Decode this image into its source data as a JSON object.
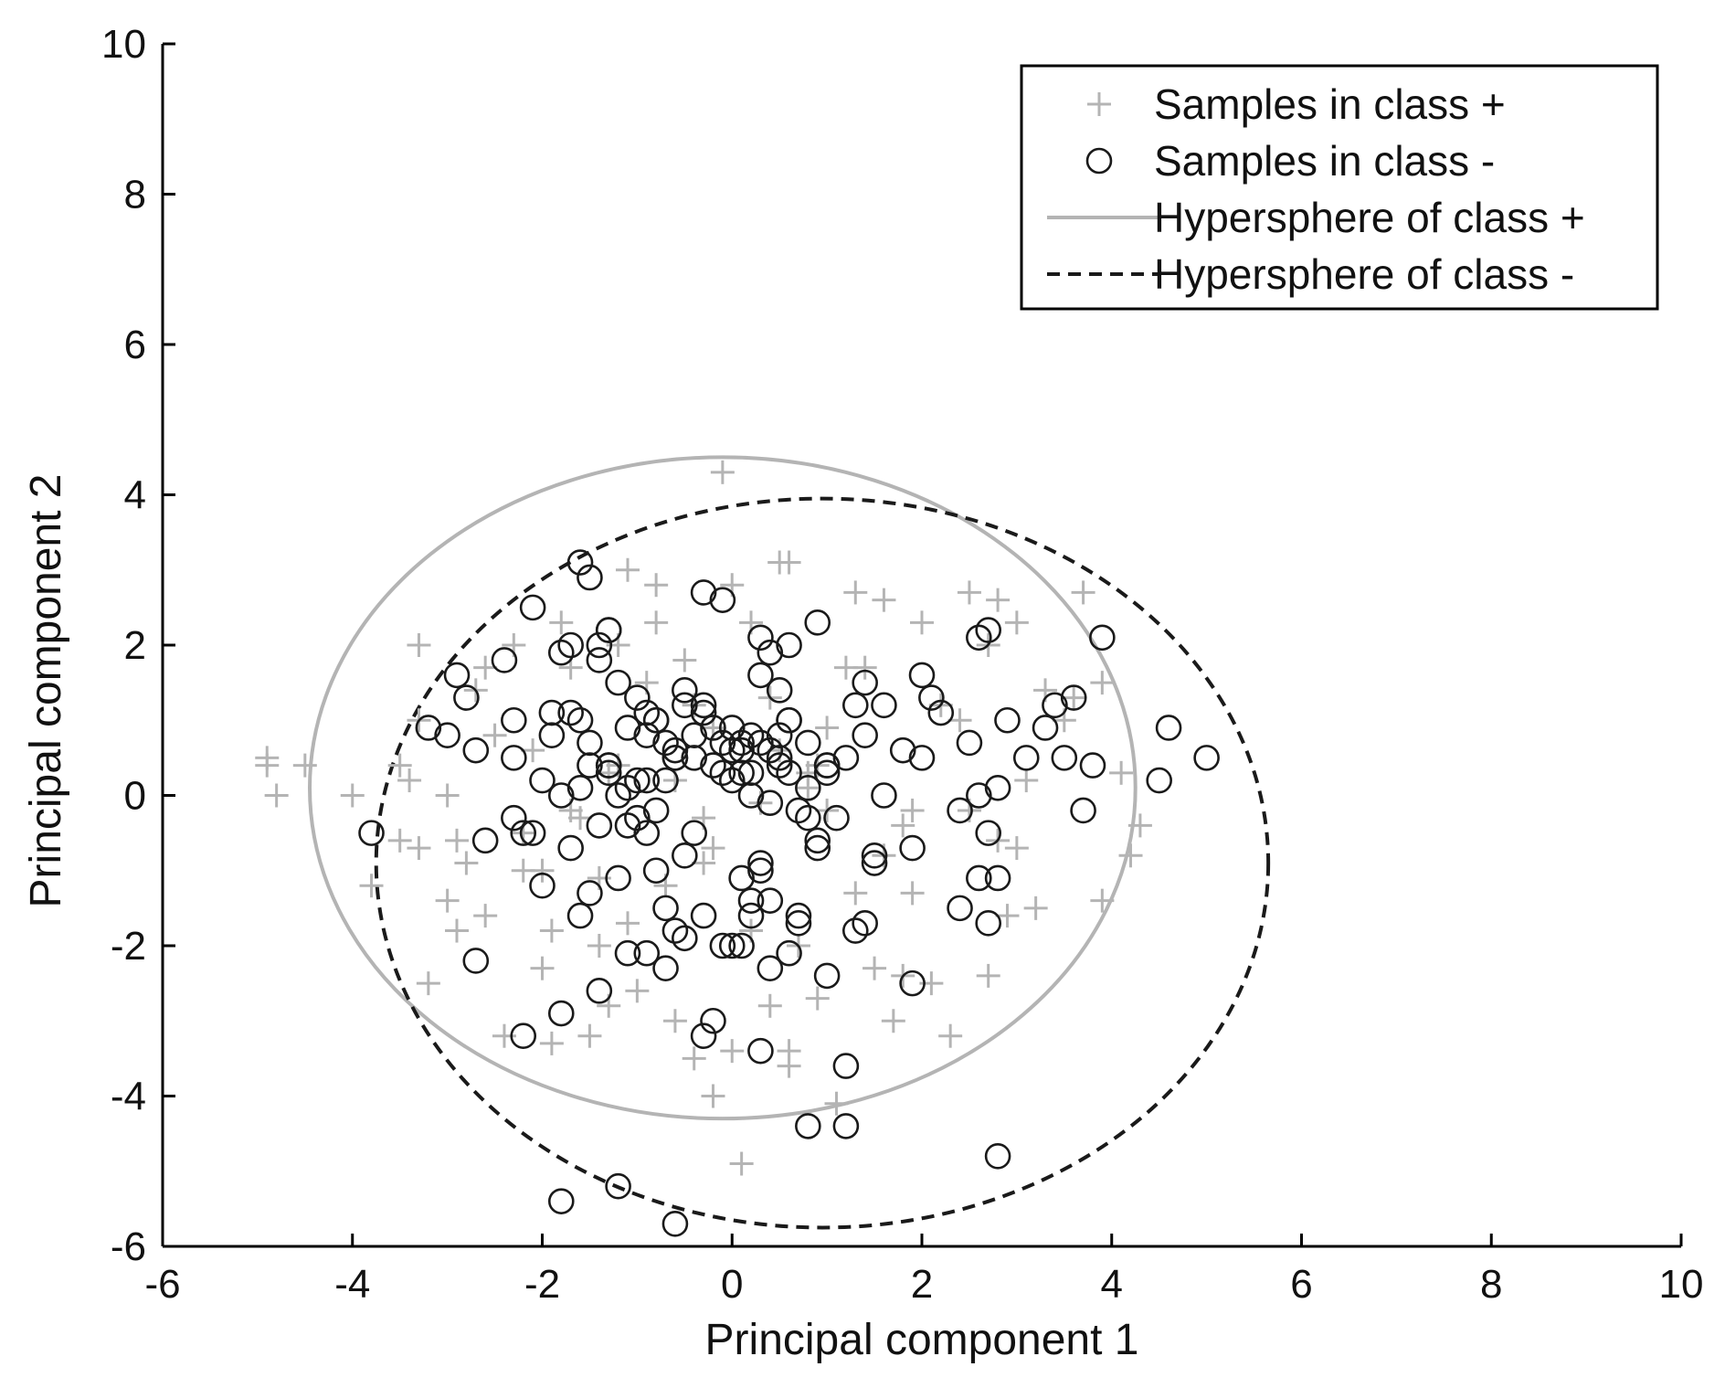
{
  "chart_data": {
    "type": "scatter",
    "xlabel": "Principal component 1",
    "ylabel": "Principal component 2",
    "xlim": [
      -6,
      10
    ],
    "ylim": [
      -6,
      10
    ],
    "x_ticks": [
      -6,
      -4,
      -2,
      0,
      2,
      4,
      6,
      8,
      10
    ],
    "y_ticks": [
      -6,
      -4,
      -2,
      0,
      2,
      4,
      6,
      8,
      10
    ],
    "x_tick_labels": [
      "-6",
      "-4",
      "-2",
      "0",
      "2",
      "4",
      "6",
      "8",
      "10"
    ],
    "y_tick_labels": [
      "-6",
      "-4",
      "-2",
      "0",
      "2",
      "4",
      "6",
      "8",
      "10"
    ],
    "grid": false,
    "legend_position": "top-right",
    "colors": {
      "plus": "#b4b4b4",
      "minus": "#1a1a1a",
      "axis": "#000000"
    },
    "series": [
      {
        "name": "Samples in class +",
        "marker": "plus",
        "x": [
          -4.9,
          -4.8,
          -4.5,
          -4.9,
          -4.0,
          -3.3,
          -2.7,
          -3.4,
          -3.0,
          -3.3,
          -2.9,
          -2.6,
          -2.0,
          -1.3,
          -0.6,
          -0.4,
          -1.5,
          -0.2,
          0.0,
          0.6,
          1.1,
          0.9,
          2.3,
          1.8,
          2.1,
          3.2,
          3.9,
          4.2,
          3.9,
          4.1,
          3.6,
          3.5,
          3.0,
          2.8,
          2.5,
          2.0,
          1.3,
          0.6,
          -0.8,
          -1.8,
          -2.6,
          -3.3,
          -1.1,
          -0.1,
          0.5,
          1.6,
          2.7,
          3.7,
          -3.5,
          -3.0,
          -2.2,
          -1.1,
          0.2,
          1.3,
          1.8,
          2.8,
          1.0,
          -0.2,
          -0.7,
          -2.0,
          -3.8,
          4.3,
          0.1,
          -1.9,
          -1.0,
          1.5,
          0.7,
          -2.3,
          -1.7,
          -1.2,
          -0.5,
          0.2,
          1.2,
          -2.5,
          -2.2,
          -1.4,
          -0.3,
          0.8,
          1.6,
          2.5,
          -0.9,
          -0.2,
          0.5,
          -1.3,
          0.3,
          1.0,
          -1.6,
          -0.6,
          0.9,
          1.9,
          -2.9,
          -2.1,
          -1.2,
          -0.4,
          0.4,
          1.4,
          2.4,
          3.1,
          -3.2,
          -2.8,
          -1.7,
          -0.8,
          0.6,
          1.7,
          2.9,
          0.0,
          0.4,
          -1.9,
          -0.3,
          1.9,
          2.2,
          -2.4,
          3.3,
          -3.5,
          2.7,
          3.0,
          -1.4,
          0.8
        ],
        "y": [
          0.5,
          0.0,
          0.4,
          0.4,
          0.0,
          2.0,
          1.4,
          0.2,
          0.0,
          -0.7,
          -1.8,
          -1.6,
          -2.3,
          -2.8,
          -3.0,
          -3.5,
          -3.2,
          -4.0,
          -3.4,
          -3.6,
          -4.1,
          -2.7,
          -3.2,
          -2.4,
          -2.5,
          -1.5,
          -1.4,
          -0.8,
          1.5,
          0.3,
          1.3,
          1.0,
          2.3,
          2.6,
          2.7,
          2.3,
          2.7,
          3.1,
          2.8,
          2.3,
          1.7,
          1.0,
          3.0,
          4.3,
          3.1,
          2.6,
          2.0,
          2.7,
          -0.6,
          -1.4,
          -1.0,
          -1.7,
          -1.8,
          -1.3,
          -0.4,
          -0.6,
          -0.2,
          -0.7,
          -1.2,
          -1.0,
          -1.2,
          -0.4,
          -4.9,
          -3.3,
          -2.6,
          -2.3,
          -2.0,
          2.0,
          1.7,
          2.0,
          1.8,
          2.3,
          1.7,
          0.8,
          -0.5,
          -1.1,
          -0.3,
          0.3,
          -0.8,
          -0.2,
          1.5,
          0.9,
          0.6,
          0.3,
          -0.1,
          0.9,
          -0.3,
          0.2,
          0.4,
          -1.3,
          -0.6,
          0.6,
          0.4,
          1.2,
          1.3,
          1.7,
          1.0,
          0.2,
          -2.5,
          -0.9,
          -0.2,
          2.3,
          -3.4,
          -3.0,
          -1.6,
          2.8,
          -2.8,
          -1.8,
          -0.9,
          -0.2,
          1.2,
          -3.2,
          1.4,
          0.4,
          -2.4,
          -0.7,
          -2.0,
          0.1
        ],
        "color": "#b4b4b4"
      },
      {
        "name": "Samples in class -",
        "marker": "circle",
        "x": [
          -3.8,
          -2.6,
          -3.2,
          -3.0,
          -2.9,
          -2.8,
          -2.7,
          -2.4,
          -2.3,
          -2.3,
          -2.0,
          -1.9,
          -1.7,
          -1.6,
          -1.5,
          -1.4,
          -1.3,
          -1.6,
          -1.8,
          -2.1,
          -2.0,
          -2.7,
          -2.2,
          -1.8,
          -1.6,
          -1.4,
          -1.2,
          -1.1,
          -0.9,
          -0.7,
          -0.5,
          -0.3,
          -0.1,
          0.1,
          0.2,
          0.4,
          0.6,
          0.7,
          0.9,
          1.0,
          1.2,
          1.4,
          1.5,
          1.6,
          1.8,
          1.9,
          2.0,
          2.1,
          2.2,
          2.4,
          2.5,
          2.6,
          2.7,
          2.8,
          2.9,
          3.1,
          3.4,
          3.5,
          3.6,
          3.8,
          3.9,
          4.5,
          4.6,
          5.0,
          3.7,
          3.3,
          2.6,
          2.4,
          2.7,
          2.8,
          1.9,
          1.5,
          1.4,
          1.3,
          1.0,
          0.8,
          0.6,
          0.5,
          0.4,
          0.3,
          0.3,
          0.2,
          0.1,
          0.0,
          -0.2,
          -0.3,
          -0.5,
          -0.6,
          -0.7,
          -0.8,
          -0.9,
          -1.0,
          -1.1,
          -1.2,
          -1.3,
          -1.4,
          -1.5,
          -1.9,
          -2.1,
          -1.8,
          -1.7,
          -1.3,
          -0.3,
          -0.1,
          0.3,
          0.9,
          1.0,
          1.2,
          0.3,
          -1.8,
          -1.2,
          -0.6,
          2.8,
          0.8,
          1.2,
          -1.7,
          -1.4,
          -2.3,
          -0.5,
          -0.1,
          0.5,
          1.6,
          2.7,
          -1.3,
          -0.8,
          -0.4,
          0.1,
          0.6,
          -0.9,
          -0.6,
          -0.2,
          0.2,
          0.7,
          -1.1,
          -0.7,
          -0.3,
          0.0,
          0.4,
          -1.2,
          -1.0,
          -0.4,
          0.1,
          0.5,
          -0.9,
          -0.5,
          0.0,
          0.4,
          0.8,
          -1.3,
          -0.8,
          -0.2,
          0.3,
          -1.0,
          -0.6,
          -0.1,
          0.2,
          0.6,
          1.0,
          1.1,
          -1.5,
          -1.1,
          -0.7,
          -0.3,
          0.1,
          0.5,
          -0.8,
          0.8,
          0.2,
          -0.6,
          1.4,
          0.6,
          -1.6,
          -0.4,
          0.9,
          2.0,
          2.6,
          1.3,
          0.4,
          -1.5,
          -2.2,
          -0.9,
          0.7,
          0.0,
          0.3
        ],
        "y": [
          -0.5,
          -0.6,
          0.9,
          0.8,
          1.6,
          1.3,
          0.6,
          1.8,
          1.0,
          0.5,
          0.2,
          0.8,
          2.0,
          3.1,
          2.9,
          1.8,
          2.2,
          1.0,
          0.0,
          -0.5,
          -1.2,
          -2.2,
          -3.2,
          -2.9,
          -1.6,
          -2.6,
          -1.1,
          -2.1,
          -2.1,
          -1.5,
          -0.8,
          -1.6,
          -2.0,
          -1.1,
          -1.4,
          -2.3,
          -2.1,
          -1.7,
          -0.6,
          -2.4,
          -3.6,
          -1.7,
          -0.9,
          0.0,
          0.6,
          -0.7,
          0.5,
          1.3,
          1.1,
          -0.2,
          0.7,
          0.0,
          2.2,
          0.1,
          1.0,
          0.5,
          1.2,
          0.5,
          1.3,
          0.4,
          2.1,
          0.2,
          0.9,
          0.5,
          -0.2,
          0.9,
          -1.1,
          -1.5,
          -1.7,
          -1.1,
          -2.5,
          -0.8,
          0.8,
          1.2,
          0.4,
          0.7,
          2.0,
          1.4,
          1.9,
          2.1,
          -1.0,
          -1.6,
          -2.0,
          -2.0,
          -3.0,
          -3.2,
          -1.9,
          -1.8,
          -2.3,
          -1.0,
          -0.5,
          -0.3,
          0.1,
          1.5,
          2.2,
          2.0,
          0.7,
          1.1,
          2.5,
          1.9,
          1.1,
          0.3,
          2.7,
          2.6,
          1.6,
          2.3,
          0.3,
          0.5,
          -3.4,
          -5.4,
          -5.2,
          -5.7,
          -4.8,
          -4.4,
          -4.4,
          -0.7,
          -0.4,
          -0.3,
          1.4,
          0.7,
          0.5,
          1.2,
          -0.5,
          0.4,
          1.0,
          0.8,
          0.6,
          0.3,
          0.2,
          0.5,
          0.4,
          0.0,
          -0.2,
          0.9,
          0.7,
          1.1,
          0.9,
          0.6,
          0.0,
          0.2,
          0.5,
          0.3,
          0.8,
          1.1,
          1.2,
          0.2,
          -0.1,
          0.1,
          0.4,
          1.0,
          0.9,
          0.7,
          1.3,
          0.6,
          0.3,
          0.8,
          1.0,
          0.4,
          -0.3,
          0.4,
          -0.4,
          0.2,
          1.2,
          0.7,
          0.4,
          -0.2,
          -0.3,
          0.3,
          0.5,
          1.5,
          1.0,
          0.1,
          -0.5,
          -0.7,
          1.6,
          2.1,
          -1.8,
          -1.4,
          -1.3,
          -0.5,
          0.8,
          -1.6,
          0.6,
          -0.9
        ],
        "color": "#1a1a1a"
      }
    ],
    "curves": [
      {
        "name": "Hypersphere of class +",
        "style": "solid",
        "shape": "ellipse",
        "center": [
          -0.1,
          0.1
        ],
        "radii": [
          4.35,
          4.4
        ],
        "color": "#b4b4b4"
      },
      {
        "name": "Hypersphere of class -",
        "style": "dashed",
        "shape": "ellipse",
        "center": [
          0.95,
          -0.9
        ],
        "radii": [
          4.7,
          4.85
        ],
        "color": "#1a1a1a"
      }
    ]
  },
  "legend": {
    "items": [
      {
        "label": "Samples in class +",
        "marker": "plus"
      },
      {
        "label": "Samples in class -",
        "marker": "circle"
      },
      {
        "label": "Hypersphere of class +",
        "marker": "solid-line"
      },
      {
        "label": "Hypersphere of class -",
        "marker": "dashed-line"
      }
    ]
  }
}
